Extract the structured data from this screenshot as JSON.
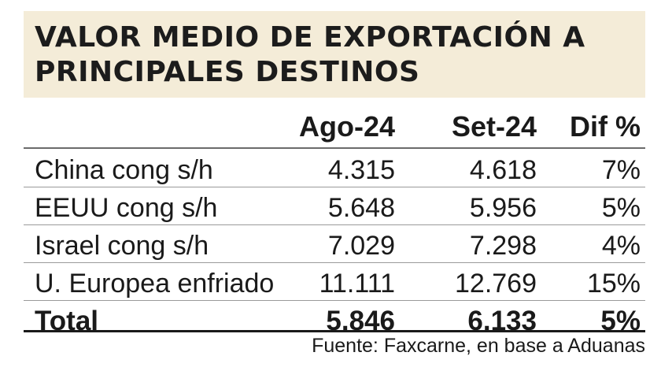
{
  "chart_data": {
    "type": "table",
    "title": "VALOR MEDIO DE EXPORTACIÓN A PRINCIPALES DESTINOS",
    "columns": [
      "",
      "Ago-24",
      "Set-24",
      "Dif %"
    ],
    "rows": [
      {
        "label": "China cong s/h",
        "ago": "4.315",
        "set": "4.618",
        "dif": "7%"
      },
      {
        "label": "EEUU cong s/h",
        "ago": "5.648",
        "set": "5.956",
        "dif": "5%"
      },
      {
        "label": "Israel cong s/h",
        "ago": "7.029",
        "set": "7.298",
        "dif": "4%"
      },
      {
        "label": "U. Europea enfriado",
        "ago": "11.111",
        "set": "12.769",
        "dif": "15%"
      }
    ],
    "total": {
      "label": "Total",
      "ago": "5.846",
      "set": "6.133",
      "dif": "5%"
    },
    "source": "Fuente: Faxcarne, en base a Aduanas"
  },
  "colors": {
    "title_band": "#f4ecd8",
    "text": "#1a1a1a",
    "rule": "#9a9a9a"
  }
}
